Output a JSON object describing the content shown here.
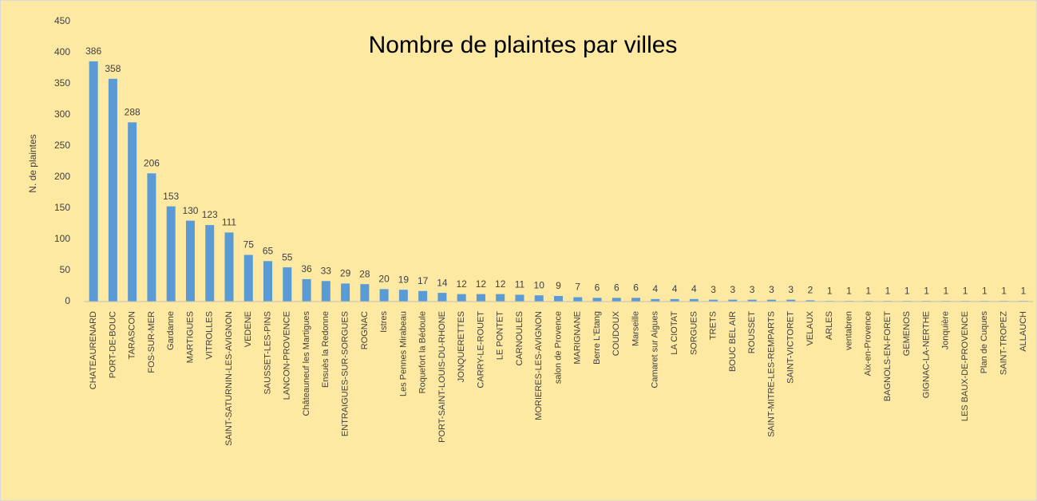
{
  "chart_data": {
    "type": "bar",
    "title": "Nombre de plaintes par villes",
    "ylabel": "N. de plaintes",
    "categories": [
      "CHATEAURENARD",
      "PORT-DE-BOUC",
      "TARASCON",
      "FOS-SUR-MER",
      "Gardanne",
      "MARTIGUES",
      "VITROLLES",
      "SAINT-SATURNIN-LES-AVIGNON",
      "VEDENE",
      "SAUSSET-LES-PINS",
      "LANCON-PROVENCE",
      "Châteauneuf les Martigues",
      "Ensuès la Redonne",
      "ENTRAIGUES-SUR-SORGUES",
      "ROGNAC",
      "Istres",
      "Les Pennes Mirabeau",
      "Roquefort la Bédoule",
      "PORT-SAINT-LOUIS-DU-RHONE",
      "JONQUERETTES",
      "CARRY-LE-ROUET",
      "LE PONTET",
      "CARNOULES",
      "MORIERES-LES-AVIGNON",
      "salon de Provence",
      "MARIGNANE",
      "Berre L'Etang",
      "COUDOUX",
      "Marseille",
      "Camaret sur Aigues",
      "LA CIOTAT",
      "SORGUES",
      "TRETS",
      "BOUC BEL AIR",
      "ROUSSET",
      "SAINT-MITRE-LES-REMPARTS",
      "SAINT-VICTORET",
      "VELAUX",
      "ARLES",
      "ventabren",
      "Aix-en-Provence",
      "BAGNOLS-EN-FORET",
      "GEMENOS",
      "GIGNAC-LA-NERTHE",
      "Jonquière",
      "LES BAUX-DE-PROVENCE",
      "Plan de Cuques",
      "SAINT-TROPEZ",
      "ALLAUCH"
    ],
    "values": [
      386,
      358,
      288,
      206,
      153,
      130,
      123,
      111,
      75,
      65,
      55,
      36,
      33,
      29,
      28,
      20,
      19,
      17,
      14,
      12,
      12,
      12,
      11,
      10,
      9,
      7,
      6,
      6,
      6,
      4,
      4,
      4,
      3,
      3,
      3,
      3,
      3,
      2,
      1,
      1,
      1,
      1,
      1,
      1,
      1,
      1,
      1,
      1,
      1
    ],
    "color": "#5b9bd5",
    "ylim": [
      0,
      450
    ],
    "yticks": [
      0,
      50,
      100,
      150,
      200,
      250,
      300,
      350,
      400,
      450
    ],
    "grid": false
  }
}
